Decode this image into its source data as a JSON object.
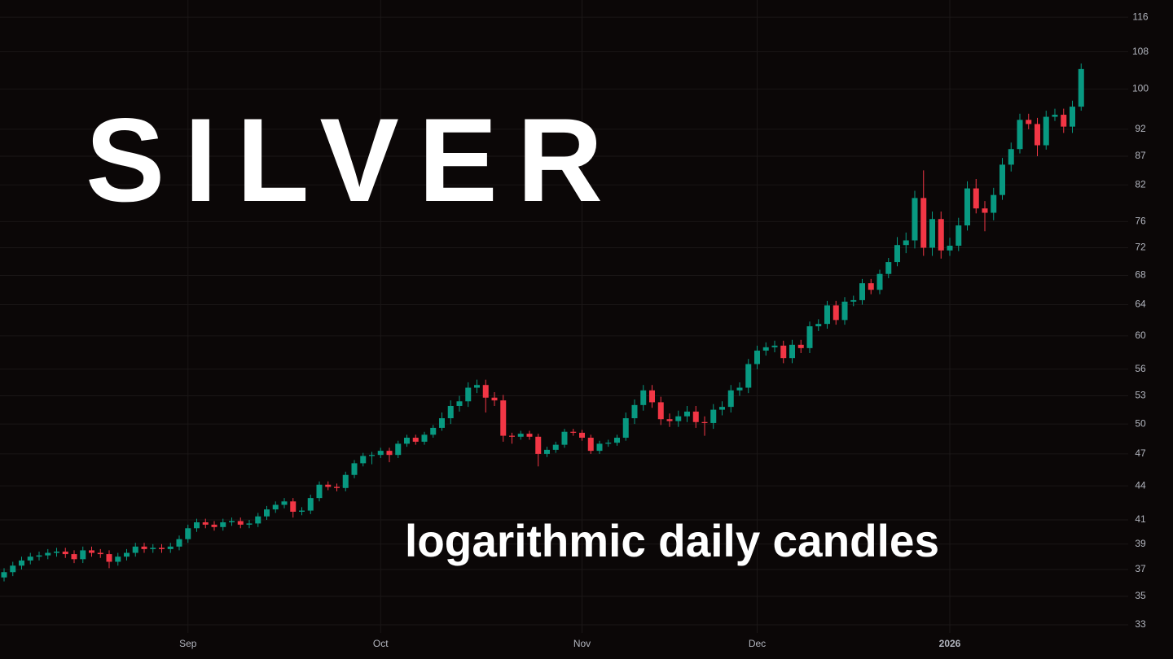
{
  "chart_data": {
    "type": "candlestick",
    "title": "SILVER",
    "subtitle": "logarithmic daily candles",
    "log_scale": true,
    "grid": true,
    "up_color": "#089981",
    "down_color": "#f23645",
    "ylim": [
      32.45,
      120.2
    ],
    "yticks": [
      33,
      35,
      37,
      39,
      41,
      44,
      47,
      50,
      53,
      56,
      60,
      64,
      68,
      72,
      76,
      82,
      87,
      92,
      100,
      108,
      116
    ],
    "categories": [
      null,
      null,
      null,
      null,
      null,
      null,
      null,
      null,
      null,
      null,
      null,
      null,
      null,
      null,
      null,
      null,
      null,
      null,
      null,
      null,
      null,
      "Sep",
      null,
      null,
      null,
      null,
      null,
      null,
      null,
      null,
      null,
      null,
      null,
      null,
      null,
      null,
      null,
      null,
      null,
      null,
      null,
      null,
      null,
      "Oct",
      null,
      null,
      null,
      null,
      null,
      null,
      null,
      null,
      null,
      null,
      null,
      null,
      null,
      null,
      null,
      null,
      null,
      null,
      null,
      null,
      null,
      null,
      "Nov",
      null,
      null,
      null,
      null,
      null,
      null,
      null,
      null,
      null,
      null,
      null,
      null,
      null,
      null,
      null,
      null,
      null,
      null,
      null,
      "Dec",
      null,
      null,
      null,
      null,
      null,
      null,
      null,
      null,
      null,
      null,
      null,
      null,
      null,
      null,
      null,
      null,
      null,
      null,
      null,
      null,
      null,
      "2026",
      null,
      null,
      null,
      null,
      null,
      null,
      null,
      null,
      null,
      null,
      null,
      null,
      null,
      null,
      null
    ],
    "open": [
      36.4,
      36.8,
      37.3,
      37.7,
      38.0,
      38.1,
      38.3,
      38.4,
      38.2,
      37.8,
      38.5,
      38.3,
      38.2,
      37.6,
      38.0,
      38.3,
      38.8,
      38.6,
      38.7,
      38.6,
      38.8,
      39.4,
      40.3,
      40.8,
      40.6,
      40.4,
      40.8,
      40.9,
      40.6,
      40.7,
      41.3,
      41.9,
      42.3,
      42.6,
      41.7,
      41.8,
      42.9,
      44.1,
      43.9,
      43.8,
      45.0,
      46.1,
      46.8,
      46.9,
      47.3,
      46.9,
      48.0,
      48.6,
      48.2,
      48.9,
      49.6,
      50.6,
      51.9,
      52.4,
      53.9,
      54.2,
      52.8,
      52.5,
      48.8,
      48.7,
      49.0,
      48.7,
      47.0,
      47.4,
      47.9,
      49.2,
      49.1,
      48.6,
      47.3,
      48.0,
      48.1,
      48.6,
      50.6,
      52.0,
      53.6,
      52.3,
      50.5,
      50.3,
      50.8,
      51.3,
      50.2,
      50.1,
      51.5,
      51.8,
      53.6,
      53.9,
      56.6,
      58.2,
      58.6,
      58.8,
      57.3,
      58.9,
      58.5,
      61.2,
      61.5,
      63.9,
      62.0,
      64.4,
      64.6,
      66.9,
      66.0,
      68.2,
      69.9,
      72.4,
      73.1,
      79.8,
      72.0,
      76.4,
      71.6,
      72.3,
      75.4,
      81.4,
      78.1,
      77.4,
      80.3,
      85.5,
      88.3,
      93.8,
      93.0,
      89.0,
      94.4,
      94.8,
      92.5,
      96.4
    ],
    "high": [
      37.1,
      37.6,
      38.0,
      38.3,
      38.4,
      38.6,
      38.7,
      38.7,
      38.5,
      38.8,
      38.8,
      38.6,
      38.5,
      38.3,
      38.6,
      39.1,
      39.1,
      39.0,
      39.0,
      39.1,
      39.7,
      40.6,
      41.1,
      41.1,
      40.9,
      41.1,
      41.2,
      41.2,
      41.0,
      41.6,
      42.2,
      42.6,
      42.9,
      42.9,
      42.1,
      43.2,
      44.4,
      44.4,
      44.2,
      45.3,
      46.4,
      47.1,
      47.2,
      47.6,
      47.6,
      48.3,
      48.9,
      48.9,
      49.2,
      49.9,
      51.2,
      52.5,
      53.0,
      54.5,
      54.8,
      54.8,
      53.4,
      53.1,
      49.1,
      49.3,
      49.3,
      49.0,
      47.7,
      48.2,
      49.5,
      49.5,
      49.4,
      48.9,
      48.3,
      48.4,
      48.9,
      51.2,
      52.6,
      54.2,
      54.2,
      52.9,
      51.1,
      51.4,
      51.9,
      51.9,
      50.8,
      52.1,
      52.4,
      54.2,
      54.5,
      57.2,
      58.8,
      59.2,
      59.4,
      59.4,
      59.5,
      59.5,
      61.8,
      62.1,
      64.5,
      64.5,
      65.0,
      65.2,
      67.5,
      67.5,
      68.8,
      70.5,
      73.6,
      74.3,
      81.0,
      84.5,
      77.6,
      77.6,
      73.5,
      76.6,
      82.6,
      83.0,
      79.3,
      81.5,
      86.7,
      89.5,
      95.0,
      95.0,
      94.2,
      95.6,
      96.0,
      96.0,
      97.6,
      105.4
    ],
    "low": [
      36.1,
      36.5,
      37.0,
      37.4,
      37.7,
      37.8,
      38.0,
      37.9,
      37.5,
      37.5,
      38.0,
      37.9,
      37.1,
      37.3,
      37.7,
      38.0,
      38.3,
      38.3,
      38.3,
      38.3,
      38.5,
      39.1,
      40.0,
      40.3,
      40.1,
      40.1,
      40.5,
      40.3,
      40.3,
      40.4,
      41.0,
      41.6,
      42.0,
      41.2,
      41.4,
      41.5,
      42.6,
      43.6,
      43.5,
      43.5,
      44.7,
      45.8,
      46.0,
      46.6,
      46.2,
      46.6,
      47.7,
      47.9,
      47.9,
      48.6,
      49.3,
      50.0,
      51.3,
      51.8,
      53.3,
      51.2,
      51.9,
      48.2,
      48.0,
      48.4,
      48.4,
      45.8,
      46.7,
      47.1,
      47.6,
      48.8,
      48.3,
      47.0,
      47.0,
      47.7,
      47.8,
      48.3,
      50.0,
      51.4,
      51.7,
      49.9,
      49.7,
      49.7,
      50.2,
      49.6,
      48.8,
      49.5,
      50.9,
      51.2,
      53.0,
      53.3,
      56.0,
      57.6,
      58.0,
      56.7,
      56.7,
      57.9,
      57.9,
      60.6,
      60.9,
      61.4,
      61.4,
      63.8,
      64.0,
      65.4,
      65.4,
      67.6,
      69.3,
      71.2,
      71.9,
      70.8,
      70.8,
      70.4,
      70.8,
      71.5,
      74.6,
      77.3,
      74.5,
      76.2,
      79.5,
      84.3,
      87.5,
      92.0,
      87.0,
      88.2,
      93.6,
      91.3,
      91.3,
      95.6
    ],
    "close": [
      36.8,
      37.3,
      37.7,
      38.0,
      38.1,
      38.3,
      38.4,
      38.2,
      37.8,
      38.5,
      38.3,
      38.2,
      37.6,
      38.0,
      38.3,
      38.8,
      38.6,
      38.7,
      38.6,
      38.8,
      39.4,
      40.3,
      40.8,
      40.6,
      40.4,
      40.8,
      40.9,
      40.6,
      40.7,
      41.3,
      41.9,
      42.3,
      42.6,
      41.7,
      41.8,
      42.9,
      44.1,
      43.9,
      43.8,
      45.0,
      46.1,
      46.8,
      46.9,
      47.3,
      46.9,
      48.0,
      48.6,
      48.2,
      48.9,
      49.6,
      50.6,
      51.9,
      52.4,
      53.9,
      54.2,
      52.8,
      52.5,
      48.8,
      48.7,
      49.0,
      48.7,
      47.0,
      47.4,
      47.9,
      49.2,
      49.1,
      48.6,
      47.3,
      48.0,
      48.1,
      48.6,
      50.6,
      52.0,
      53.6,
      52.3,
      50.5,
      50.3,
      50.8,
      51.3,
      50.2,
      50.1,
      51.5,
      51.8,
      53.6,
      53.9,
      56.6,
      58.2,
      58.6,
      58.8,
      57.3,
      58.9,
      58.5,
      61.2,
      61.5,
      63.9,
      62.0,
      64.4,
      64.6,
      66.9,
      66.0,
      68.2,
      69.9,
      72.4,
      73.1,
      79.8,
      72.0,
      76.4,
      71.6,
      72.3,
      75.4,
      81.4,
      78.1,
      77.4,
      80.3,
      85.5,
      88.3,
      93.8,
      93.0,
      89.0,
      94.4,
      94.8,
      92.5,
      96.4,
      104.2
    ]
  }
}
